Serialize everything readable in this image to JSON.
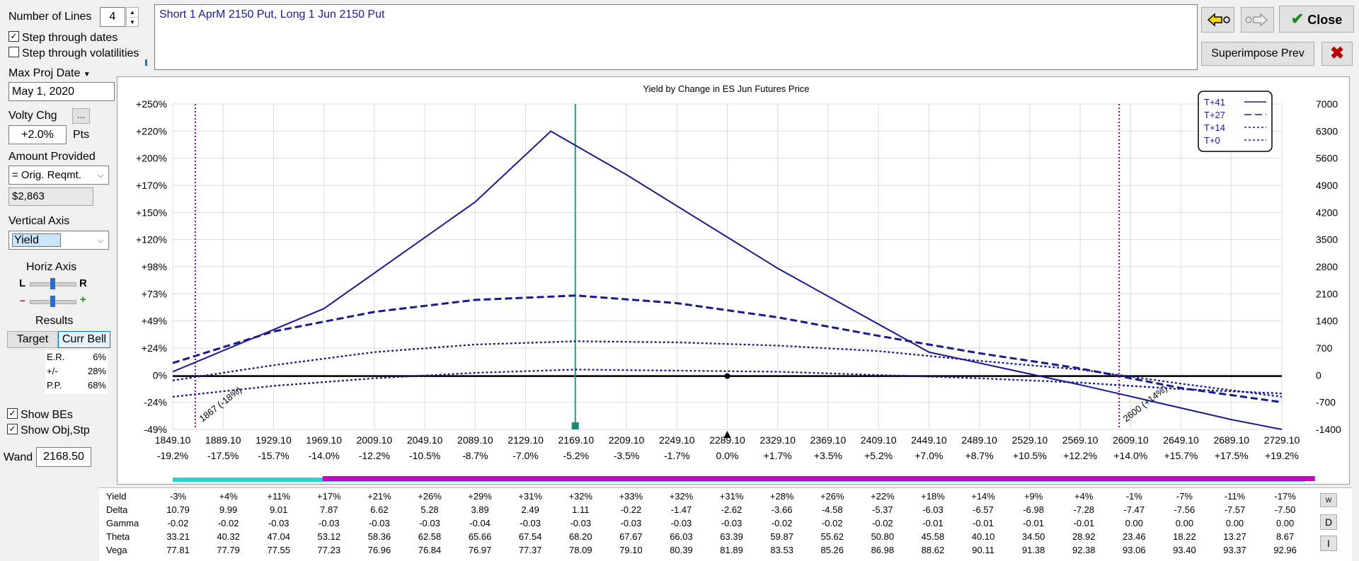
{
  "controls": {
    "num_lines_label": "Number of Lines",
    "num_lines_value": "4",
    "step_dates_label": "Step through dates",
    "step_dates_checked": true,
    "step_vols_label": "Step through volatilities",
    "step_vols_checked": false,
    "max_proj_date_label": "Max Proj Date",
    "max_proj_date_value": "May 1, 2020",
    "volty_chg_label": "Volty Chg",
    "volty_btn_label": "...",
    "volty_value": "+2.0%",
    "volty_unit": "Pts",
    "amount_label": "Amount Provided",
    "amount_select": "= Orig. Reqmt.",
    "amount_value": "$2,863",
    "vaxis_label": "Vertical Axis",
    "vaxis_select": "Yield",
    "haxis_label": "Horiz Axis",
    "haxis_left": "L",
    "haxis_right": "R",
    "haxis_minus": "–",
    "haxis_plus": "+",
    "results_label": "Results",
    "target_btn": "Target",
    "currbell_btn": "Curr Bell",
    "stats": [
      {
        "k": "E.R.",
        "v": "6%"
      },
      {
        "k": "+/-",
        "v": "28%"
      },
      {
        "k": "P.P.",
        "v": "68%"
      }
    ],
    "show_bes_label": "Show BEs",
    "show_bes_checked": true,
    "show_objstp_label": "Show Obj,Stp",
    "show_objstp_checked": true,
    "wand_label": "Wand",
    "wand_value": "2168.50"
  },
  "description": "Short 1 AprM 2150 Put, Long 1 Jun 2150 Put",
  "buttons": {
    "close": "Close",
    "superimpose": "Superimpose Prev"
  },
  "colors": {
    "curve": "#1a1a8c",
    "wand_line": "#2a9d8f",
    "be_line": "#8b008b",
    "cyan_bar": "#2ad4d4",
    "magenta_bar": "#c800c8",
    "close_check": "#1e8a1e",
    "red_x": "#c00000"
  },
  "chart_data": {
    "type": "line",
    "title": "Yield by Change in ES Jun Futures Price",
    "x_ticks": [
      "1849.10",
      "1889.10",
      "1929.10",
      "1969.10",
      "2009.10",
      "2049.10",
      "2089.10",
      "2129.10",
      "2169.10",
      "2209.10",
      "2249.10",
      "2289.10",
      "2329.10",
      "2369.10",
      "2409.10",
      "2449.10",
      "2489.10",
      "2529.10",
      "2569.10",
      "2609.10",
      "2649.10",
      "2689.10",
      "2729.10"
    ],
    "x_pct_ticks": [
      "-19.2%",
      "-17.5%",
      "-15.7%",
      "-14.0%",
      "-12.2%",
      "-10.5%",
      "-8.7%",
      "-7.0%",
      "-5.2%",
      "-3.5%",
      "-1.7%",
      "0.0%",
      "+1.7%",
      "+3.5%",
      "+5.2%",
      "+7.0%",
      "+8.7%",
      "+10.5%",
      "+12.2%",
      "+14.0%",
      "+15.7%",
      "+17.5%",
      "+19.2%"
    ],
    "y_left_ticks": [
      "+250%",
      "+220%",
      "+200%",
      "+170%",
      "+150%",
      "+120%",
      "+98%",
      "+73%",
      "+49%",
      "+24%",
      "0%",
      "-24%",
      "-49%"
    ],
    "y_right_ticks": [
      "7000",
      "6300",
      "5600",
      "4900",
      "4200",
      "3500",
      "2800",
      "2100",
      "1400",
      "700",
      "0",
      "-700",
      "-1400"
    ],
    "y_left_range": [
      -49,
      250
    ],
    "xlim": [
      1849.1,
      2729.1
    ],
    "legend": [
      "T+41",
      "T+27",
      "T+14",
      "T+0"
    ],
    "legend_position": "top-right",
    "breakeven_labels": [
      "1867 (-18%)",
      "2600 (+14%)"
    ],
    "breakevens": [
      1867,
      2600
    ],
    "wand": 2168.5,
    "current_price": 2289.1,
    "series": [
      {
        "name": "T+41",
        "style": "solid",
        "x": [
          1849.1,
          1969.1,
          2089.1,
          2149.1,
          2209.1,
          2329.1,
          2449.1,
          2569.1,
          2689.1,
          2729.1
        ],
        "y": [
          4,
          62,
          160,
          225,
          185,
          99,
          22,
          -8,
          -40,
          -49
        ]
      },
      {
        "name": "T+27",
        "style": "dash",
        "x": [
          1849.1,
          1929.1,
          2009.1,
          2089.1,
          2169.1,
          2249.1,
          2329.1,
          2409.1,
          2489.1,
          2569.1,
          2649.1,
          2729.1
        ],
        "y": [
          12,
          41,
          59,
          70,
          74,
          67,
          54,
          37,
          21,
          7,
          -11,
          -24
        ]
      },
      {
        "name": "T+14",
        "style": "dot",
        "x": [
          1849.1,
          1929.1,
          2009.1,
          2089.1,
          2169.1,
          2249.1,
          2329.1,
          2409.1,
          2489.1,
          2569.1,
          2649.1,
          2729.1
        ],
        "y": [
          -4,
          10,
          22,
          29,
          32,
          31,
          28,
          23,
          14,
          6,
          -7,
          -19
        ]
      },
      {
        "name": "T+0",
        "style": "dot",
        "x": [
          1849.1,
          1929.1,
          2009.1,
          2089.1,
          2169.1,
          2249.1,
          2329.1,
          2409.1,
          2489.1,
          2569.1,
          2649.1,
          2729.1
        ],
        "y": [
          -19,
          -9,
          -2,
          3,
          6,
          5,
          4,
          1,
          -2,
          -6,
          -12,
          -16
        ]
      }
    ]
  },
  "results_table": {
    "rows": [
      {
        "name": "Yield",
        "values": [
          "-3%",
          "+4%",
          "+11%",
          "+17%",
          "+21%",
          "+26%",
          "+29%",
          "+31%",
          "+32%",
          "+33%",
          "+32%",
          "+31%",
          "+28%",
          "+26%",
          "+22%",
          "+18%",
          "+14%",
          "+9%",
          "+4%",
          "-1%",
          "-7%",
          "-11%",
          "-17%"
        ]
      },
      {
        "name": "Delta",
        "values": [
          "10.79",
          "9.99",
          "9.01",
          "7.87",
          "6.62",
          "5.28",
          "3.89",
          "2.49",
          "1.11",
          "-0.22",
          "-1.47",
          "-2.62",
          "-3.66",
          "-4.58",
          "-5.37",
          "-6.03",
          "-6.57",
          "-6.98",
          "-7.28",
          "-7.47",
          "-7.56",
          "-7.57",
          "-7.50"
        ]
      },
      {
        "name": "Gamma",
        "values": [
          "-0.02",
          "-0.02",
          "-0.03",
          "-0.03",
          "-0.03",
          "-0.03",
          "-0.04",
          "-0.03",
          "-0.03",
          "-0.03",
          "-0.03",
          "-0.03",
          "-0.02",
          "-0.02",
          "-0.02",
          "-0.01",
          "-0.01",
          "-0.01",
          "-0.01",
          "0.00",
          "0.00",
          "0.00",
          "0.00"
        ]
      },
      {
        "name": "Theta",
        "values": [
          "33.21",
          "40.32",
          "47.04",
          "53.12",
          "58.36",
          "62.58",
          "65.66",
          "67.54",
          "68.20",
          "67.67",
          "66.03",
          "63.39",
          "59.87",
          "55.62",
          "50.80",
          "45.58",
          "40.10",
          "34.50",
          "28.92",
          "23.46",
          "18.22",
          "13.27",
          "8.67"
        ]
      },
      {
        "name": "Vega",
        "values": [
          "77.81",
          "77.79",
          "77.55",
          "77.23",
          "76.96",
          "76.84",
          "76.97",
          "77.37",
          "78.09",
          "79.10",
          "80.39",
          "81.89",
          "83.53",
          "85.26",
          "86.98",
          "88.62",
          "90.11",
          "91.38",
          "92.38",
          "93.06",
          "93.40",
          "93.37",
          "92.96"
        ]
      }
    ],
    "side_buttons": [
      "W",
      "D",
      "I"
    ]
  }
}
